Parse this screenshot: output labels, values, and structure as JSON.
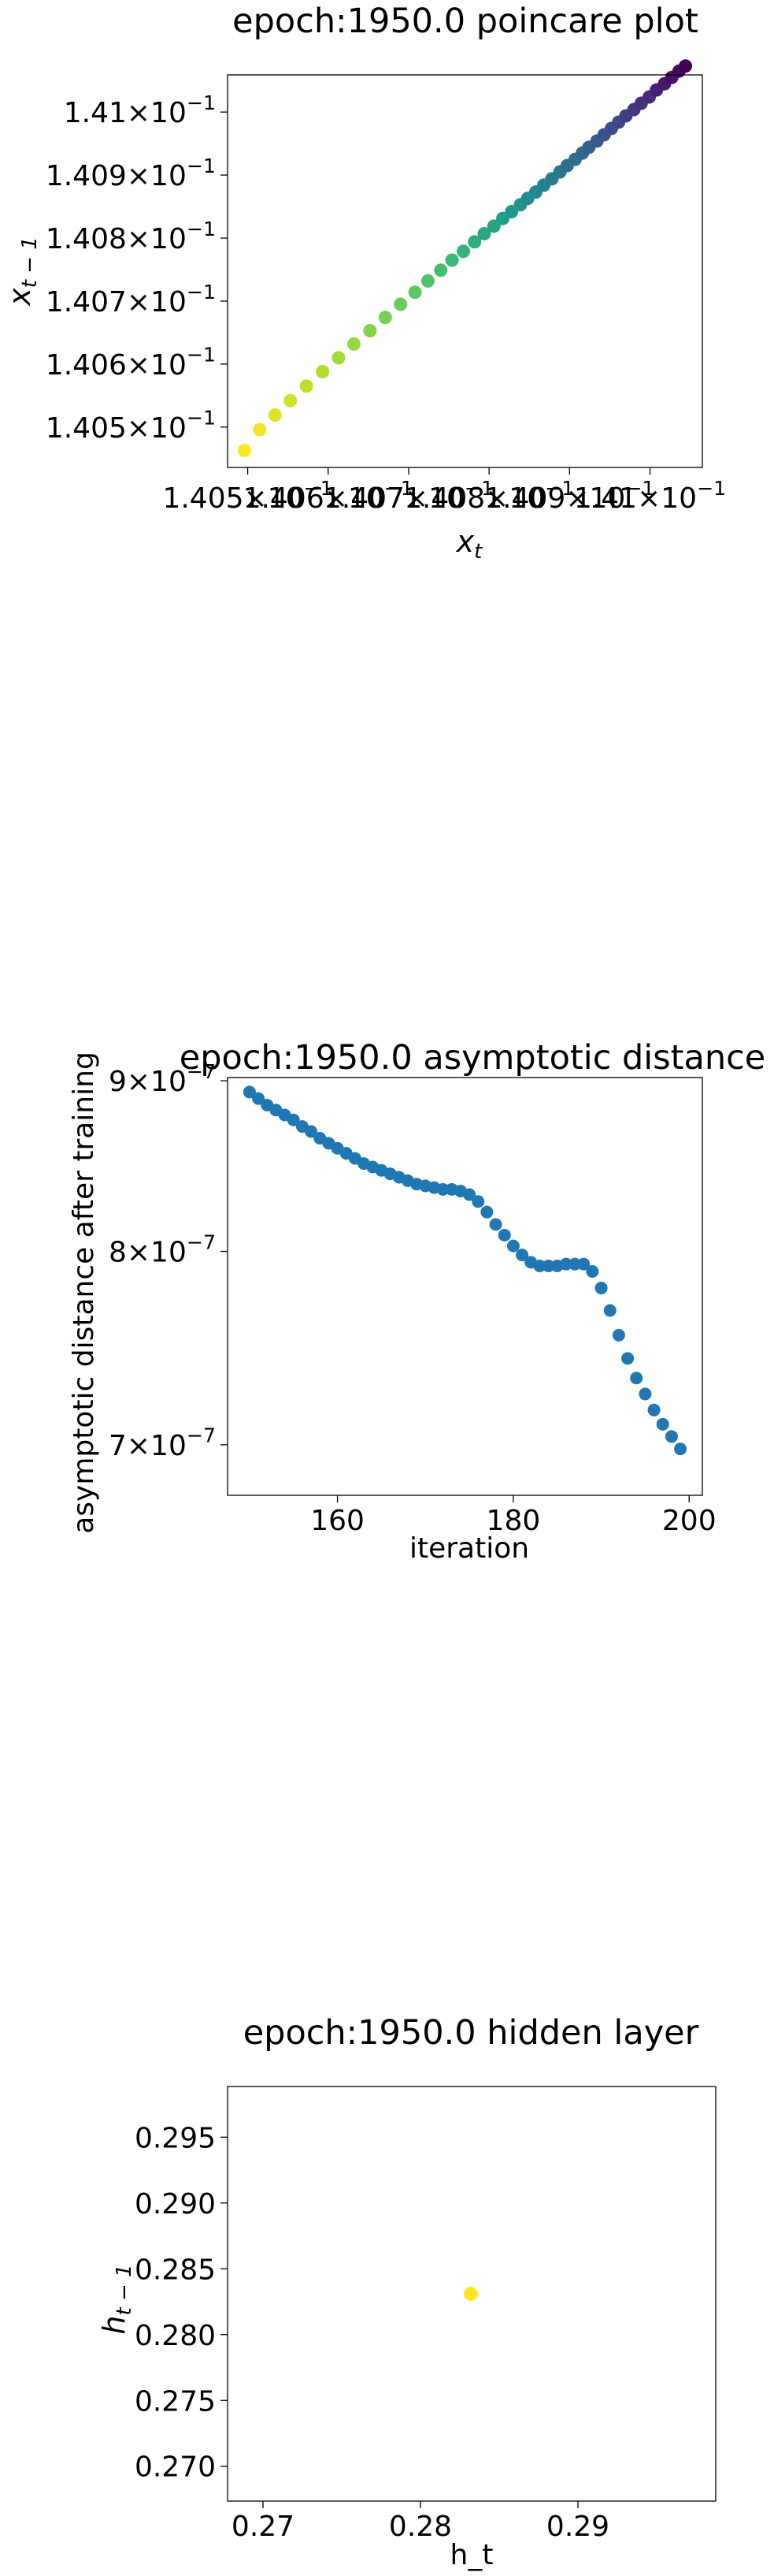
{
  "chart_data": [
    {
      "type": "scatter",
      "title": "epoch:1950.0 poincare plot",
      "xlabel": "x_t",
      "ylabel": "x_{t-1}",
      "xlim": [
        1.40475,
        1.41065
      ],
      "ylim": [
        1.40436,
        1.41059
      ],
      "x_ticks": [
        {
          "value": 1.405,
          "mant": "1.405",
          "exp": "−1"
        },
        {
          "value": 1.406,
          "mant": "1.406",
          "exp": "−1"
        },
        {
          "value": 1.407,
          "mant": "1.407",
          "exp": "−1"
        },
        {
          "value": 1.408,
          "mant": "1.408",
          "exp": "−1"
        },
        {
          "value": 1.409,
          "mant": "1.409",
          "exp": "−1"
        },
        {
          "value": 1.41,
          "mant": "1.41",
          "exp": "−1"
        }
      ],
      "y_ticks": [
        {
          "value": 1.405,
          "mant": "1.405",
          "exp": "−1"
        },
        {
          "value": 1.406,
          "mant": "1.406",
          "exp": "−1"
        },
        {
          "value": 1.407,
          "mant": "1.407",
          "exp": "−1"
        },
        {
          "value": 1.408,
          "mant": "1.408",
          "exp": "−1"
        },
        {
          "value": 1.409,
          "mant": "1.409",
          "exp": "−1"
        },
        {
          "value": 1.41,
          "mant": "1.41",
          "exp": "−1"
        }
      ],
      "x_tick_suffix": "×10",
      "colormap": "viridis (reversed along sequence)",
      "colors": {
        "start": "#fde725",
        "mid": "#21918c",
        "end": "#440154"
      },
      "points": [
        [
          1.40496,
          1.40463
        ],
        [
          1.40515,
          1.40496
        ],
        [
          1.40534,
          1.40519
        ],
        [
          1.40553,
          1.40542
        ],
        [
          1.40573,
          1.40565
        ],
        [
          1.40593,
          1.40588
        ],
        [
          1.40613,
          1.4061
        ],
        [
          1.40632,
          1.40632
        ],
        [
          1.40652,
          1.40653
        ],
        [
          1.40671,
          1.40674
        ],
        [
          1.4069,
          1.40695
        ],
        [
          1.40708,
          1.40714
        ],
        [
          1.40724,
          1.40732
        ],
        [
          1.4074,
          1.40749
        ],
        [
          1.40754,
          1.40765
        ],
        [
          1.40768,
          1.40779
        ],
        [
          1.40782,
          1.40794
        ],
        [
          1.40794,
          1.40807
        ],
        [
          1.40806,
          1.40819
        ],
        [
          1.40817,
          1.40831
        ],
        [
          1.40828,
          1.40842
        ],
        [
          1.40839,
          1.40853
        ],
        [
          1.40848,
          1.40863
        ],
        [
          1.40858,
          1.40873
        ],
        [
          1.40868,
          1.40884
        ],
        [
          1.40878,
          1.40894
        ],
        [
          1.40888,
          1.40905
        ],
        [
          1.40897,
          1.40915
        ],
        [
          1.40907,
          1.40925
        ],
        [
          1.40916,
          1.40935
        ],
        [
          1.40924,
          1.40944
        ],
        [
          1.40934,
          1.40954
        ],
        [
          1.40943,
          1.40964
        ],
        [
          1.40952,
          1.40974
        ],
        [
          1.40961,
          1.40984
        ],
        [
          1.4097,
          1.40994
        ],
        [
          1.4098,
          1.41004
        ],
        [
          1.40989,
          1.41014
        ],
        [
          1.40999,
          1.41024
        ],
        [
          1.41008,
          1.41035
        ],
        [
          1.41018,
          1.41045
        ],
        [
          1.41027,
          1.41055
        ],
        [
          1.41036,
          1.41065
        ],
        [
          1.41044,
          1.41073
        ]
      ]
    },
    {
      "type": "scatter",
      "title": "epoch:1950.0 asymptotic distance",
      "xlabel": "iteration",
      "ylabel": "asymptotic distance after training",
      "y_scale": "log",
      "xlim": [
        147.5,
        201.5
      ],
      "ylim": [
        6.76e-07,
        9.02e-07
      ],
      "x_ticks": [
        160,
        180,
        200
      ],
      "y_ticks": [
        {
          "value": 9e-07,
          "mant": "9",
          "exp": "−7"
        },
        {
          "value": 8e-07,
          "mant": "8",
          "exp": "−7"
        },
        {
          "value": 7e-07,
          "mant": "7",
          "exp": "−7"
        }
      ],
      "color": "#1f77b4",
      "x": [
        150,
        151,
        152,
        153,
        154,
        155,
        156,
        157,
        158,
        159,
        160,
        161,
        162,
        163,
        164,
        165,
        166,
        167,
        168,
        169,
        170,
        171,
        172,
        173,
        174,
        175,
        176,
        177,
        178,
        179,
        180,
        181,
        182,
        183,
        184,
        185,
        186,
        187,
        188,
        189,
        190,
        191,
        192,
        193,
        194,
        195,
        196,
        197,
        198,
        199
      ],
      "values": [
        8.93e-07,
        8.89e-07,
        8.85e-07,
        8.82e-07,
        8.79e-07,
        8.76e-07,
        8.72e-07,
        8.69e-07,
        8.65e-07,
        8.62e-07,
        8.59e-07,
        8.56e-07,
        8.53e-07,
        8.5e-07,
        8.48e-07,
        8.46e-07,
        8.44e-07,
        8.42e-07,
        8.4e-07,
        8.38e-07,
        8.37e-07,
        8.36e-07,
        8.35e-07,
        8.35e-07,
        8.34e-07,
        8.32e-07,
        8.28e-07,
        8.22e-07,
        8.15e-07,
        8.09e-07,
        8.03e-07,
        7.98e-07,
        7.94e-07,
        7.92e-07,
        7.92e-07,
        7.92e-07,
        7.93e-07,
        7.93e-07,
        7.93e-07,
        7.89e-07,
        7.8e-07,
        7.68e-07,
        7.55e-07,
        7.43e-07,
        7.33e-07,
        7.25e-07,
        7.17e-07,
        7.1e-07,
        7.04e-07,
        6.98e-07
      ]
    },
    {
      "type": "scatter",
      "title": "epoch:1950.0 hidden layer",
      "xlabel": "h_t",
      "ylabel": "h_{t-1}",
      "xlim": [
        0.26775,
        0.29875
      ],
      "ylim": [
        0.26735,
        0.29885
      ],
      "x_ticks": [
        "0.27",
        "0.28",
        "0.29"
      ],
      "y_ticks": [
        "0.295",
        "0.290",
        "0.285",
        "0.280",
        "0.275",
        "0.270"
      ],
      "color": "#fde725",
      "points": [
        [
          0.2832,
          0.2831
        ]
      ]
    }
  ]
}
